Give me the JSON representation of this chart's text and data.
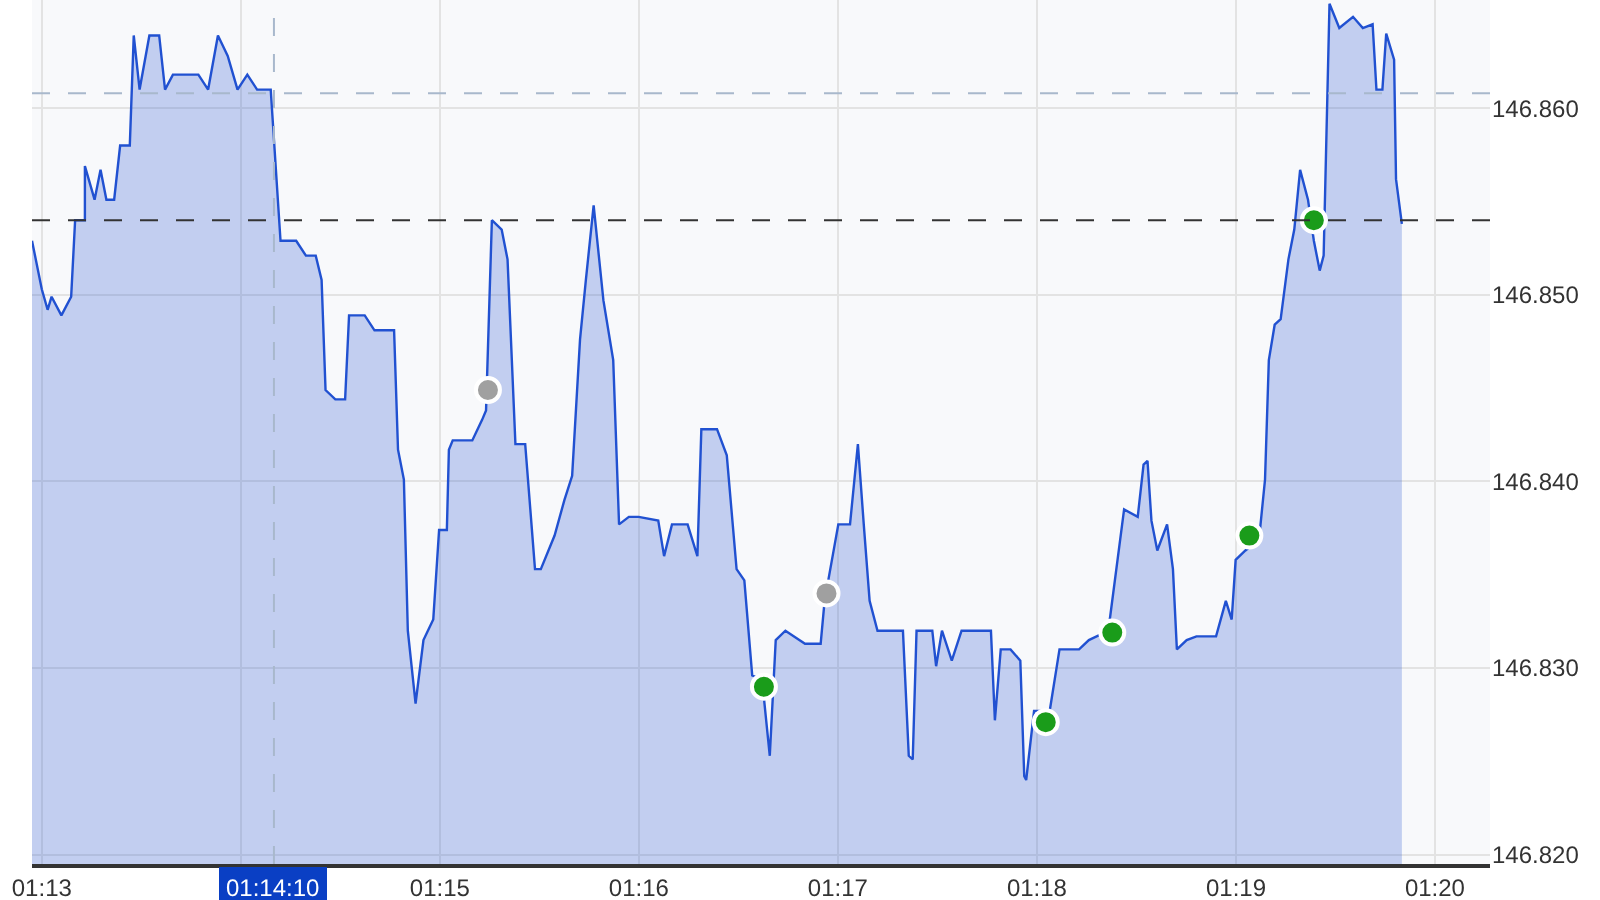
{
  "chart_data": {
    "type": "area",
    "x": [
      1.21585,
      1.21667,
      1.21716,
      1.21749,
      1.21831,
      1.21913,
      1.21946,
      1.22028,
      1.22028,
      1.22109,
      1.22159,
      1.22208,
      1.22273,
      1.22323,
      1.22404,
      1.22437,
      1.22486,
      1.22568,
      1.2265,
      1.22699,
      1.22765,
      1.22978,
      1.2306,
      1.23142,
      1.23224,
      1.23306,
      1.23388,
      1.2347,
      1.23584,
      1.23666,
      1.23797,
      1.23879,
      1.23961,
      1.2401,
      1.24043,
      1.24125,
      1.24207,
      1.2424,
      1.24371,
      1.24453,
      1.24617,
      1.2465,
      1.24699,
      1.24732,
      1.24797,
      1.24863,
      1.24945,
      1.24994,
      1.25059,
      1.25076,
      1.25108,
      1.25272,
      1.25354,
      1.25387,
      1.25436,
      1.25518,
      1.25567,
      1.25633,
      1.25715,
      1.25797,
      1.25846,
      1.25961,
      1.26043,
      1.26108,
      1.26174,
      1.26223,
      1.26288,
      1.2637,
      1.26452,
      1.26501,
      1.26583,
      1.26665,
      1.26829,
      1.26878,
      1.26944,
      1.27075,
      1.27157,
      1.2719,
      1.27321,
      1.27403,
      1.27485,
      1.2755,
      1.27616,
      1.27698,
      1.27763,
      1.27813,
      1.27894,
      1.28058,
      1.28189,
      1.28222,
      1.28337,
      1.28435,
      1.28501,
      1.2855,
      1.28599,
      1.28665,
      1.28878,
      1.28927,
      1.2896,
      1.28992,
      1.29124,
      1.29156,
      1.29205,
      1.29287,
      1.29369,
      1.29615,
      1.29648,
      1.29697,
      1.29779,
      1.29861,
      1.29894,
      1.2991,
      1.29976,
      1.30107,
      1.30189,
      1.30353,
      1.30435,
      1.30598,
      1.3073,
      1.30844,
      1.30893,
      1.30926,
      1.30959,
      1.31008,
      1.3109,
      1.31139,
      1.31172,
      1.31254,
      1.31336,
      1.315,
      1.31582,
      1.31631,
      1.31664,
      1.31746,
      1.3186,
      1.3191,
      1.31942,
      1.31991,
      1.32041,
      1.32106,
      1.32155,
      1.32204,
      1.3227,
      1.32319,
      1.32368,
      1.32401,
      1.3245,
      1.32532,
      1.32647,
      1.32729,
      1.32811,
      1.32843,
      1.32893,
      1.32925,
      1.32991,
      1.33007,
      1.33056
    ],
    "series": [
      {
        "color": "#2151d1",
        "values": [
          146.8529,
          146.8503,
          146.8492,
          146.8499,
          146.8489,
          146.8499,
          146.854,
          146.854,
          146.8569,
          146.8551,
          146.8567,
          146.8551,
          146.8551,
          146.858,
          146.858,
          146.8639,
          146.861,
          146.8639,
          146.8639,
          146.861,
          146.8618,
          146.8618,
          146.861,
          146.8639,
          146.8628,
          146.861,
          146.8618,
          146.861,
          146.861,
          146.8529,
          146.8529,
          146.8521,
          146.8521,
          146.8508,
          146.8449,
          146.8444,
          146.8444,
          146.8489,
          146.8489,
          146.8481,
          146.8481,
          146.8417,
          146.8401,
          146.832,
          146.8281,
          146.8315,
          146.8326,
          146.8374,
          146.8374,
          146.8417,
          146.8422,
          146.8422,
          146.8433,
          146.8438,
          146.854,
          146.8535,
          146.8519,
          146.842,
          146.842,
          146.8353,
          146.8353,
          146.8371,
          146.839,
          146.8403,
          146.8476,
          146.8508,
          146.8548,
          146.8497,
          146.8465,
          146.8377,
          146.8381,
          146.8381,
          146.8379,
          146.836,
          146.8377,
          146.8377,
          146.836,
          146.8428,
          146.8428,
          146.8414,
          146.8353,
          146.8347,
          146.8296,
          146.8294,
          146.8253,
          146.8315,
          146.832,
          146.8313,
          146.8313,
          146.8336,
          146.8377,
          146.8377,
          146.842,
          146.8377,
          146.8336,
          146.832,
          146.832,
          146.8253,
          146.8251,
          146.832,
          146.832,
          146.8301,
          146.832,
          146.8304,
          146.832,
          146.832,
          146.8272,
          146.831,
          146.831,
          146.8304,
          146.8242,
          146.824,
          146.8277,
          146.8277,
          146.831,
          146.831,
          146.8315,
          146.832,
          146.8385,
          146.8381,
          146.8409,
          146.8411,
          146.8379,
          146.8363,
          146.8377,
          146.8353,
          146.831,
          146.8315,
          146.8317,
          146.8317,
          146.8336,
          146.8326,
          146.8358,
          146.8363,
          146.8369,
          146.8401,
          146.8465,
          146.8484,
          146.8487,
          146.8519,
          146.8535,
          146.8567,
          146.8551,
          146.8529,
          146.8513,
          146.8521,
          146.8656,
          146.8643,
          146.8649,
          146.8643,
          146.8645,
          146.861,
          146.861,
          146.864,
          146.8626,
          146.8562,
          146.8538
        ]
      },
      {
        "type": "scatter",
        "marker": "circle",
        "x": [
          1.25403,
          1.28238,
          1.27714,
          1.30074,
          1.30631,
          1.31779,
          1.32319
        ],
        "colors": [
          "#a0a0a0",
          "#a0a0a0",
          "#1a9c1a",
          "#1a9c1a",
          "#1a9c1a",
          "#1a9c1a",
          "#1a9c1a"
        ],
        "values": [
          146.8449,
          146.834,
          146.829,
          146.8271,
          146.8319,
          146.8371,
          146.854
        ]
      }
    ],
    "xlim": [
      1.21585,
      1.33794
    ],
    "ylim": [
      146.8195,
      146.8658
    ],
    "xticks": [
      {
        "value": 1.21667,
        "label": "01:13"
      },
      {
        "value": 1.23333,
        "label": null
      },
      {
        "value": 1.25,
        "label": "01:15"
      },
      {
        "value": 1.26667,
        "label": "01:16"
      },
      {
        "value": 1.28333,
        "label": "01:17"
      },
      {
        "value": 1.3,
        "label": "01:18"
      },
      {
        "value": 1.31667,
        "label": "01:19"
      },
      {
        "value": 1.33333,
        "label": "01:20"
      }
    ],
    "yticks": [
      {
        "value": 146.82,
        "label": "146.820"
      },
      {
        "value": 146.83,
        "label": "146.830"
      },
      {
        "value": 146.84,
        "label": "146.840"
      },
      {
        "value": 146.85,
        "label": "146.850"
      },
      {
        "value": 146.86,
        "label": "146.860"
      }
    ],
    "ref_lines": [
      {
        "axis": "y",
        "value": 146.854,
        "label": null,
        "color": "#333333",
        "line_style": "dashed"
      },
      {
        "axis": "y",
        "value": 146.8608,
        "label": null,
        "color": "#a8b8cc",
        "line_style": "dashed"
      },
      {
        "axis": "x",
        "value": 1.23611,
        "label": "01:14:10",
        "color": "#a8b8cc",
        "line_style": "dashed"
      }
    ],
    "grid": true
  }
}
